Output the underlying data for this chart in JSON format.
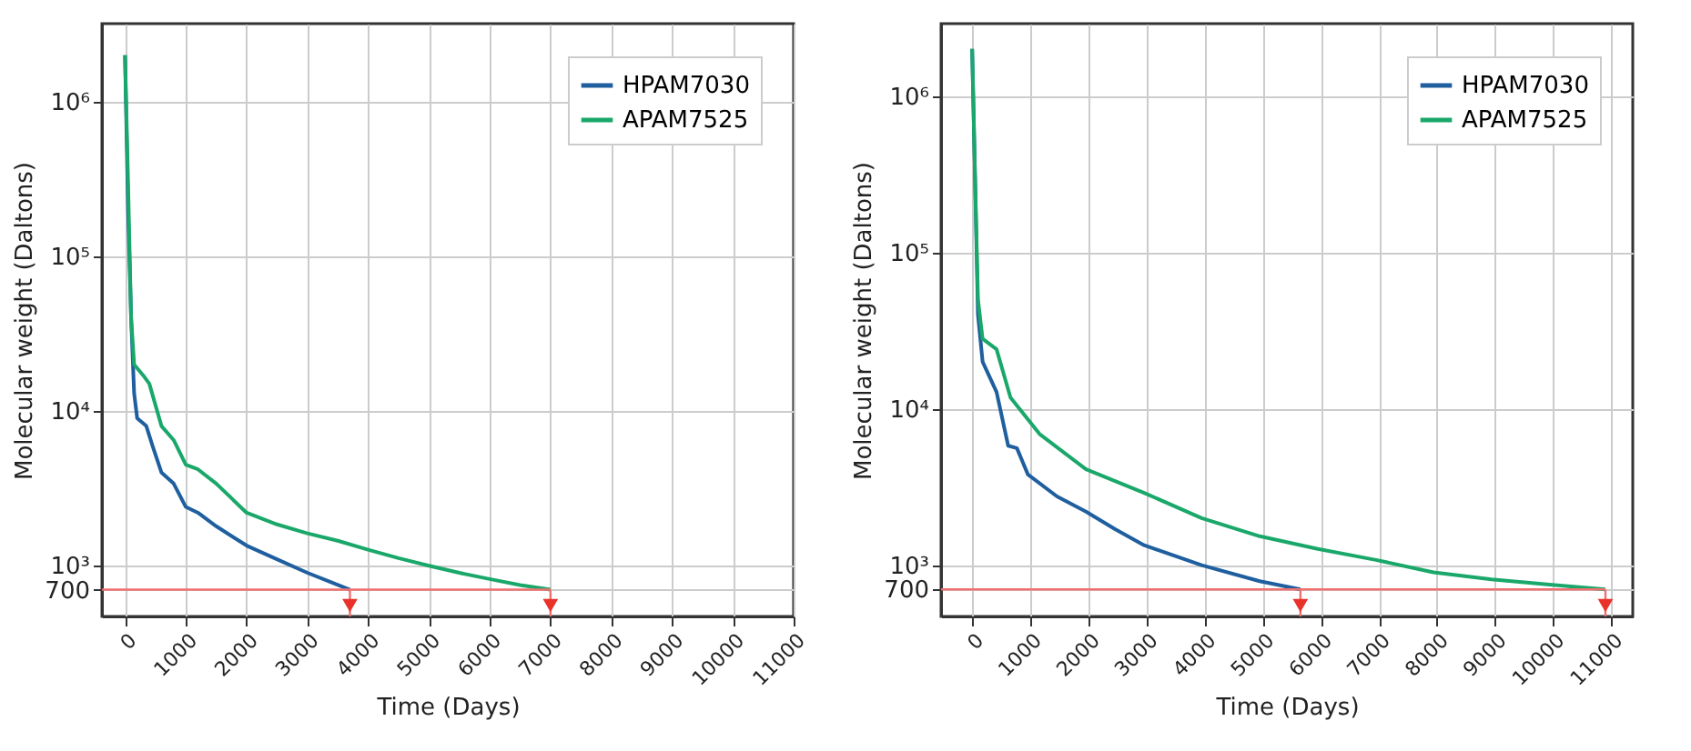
{
  "chart_data": [
    {
      "type": "line",
      "xlabel": "Time (Days)",
      "ylabel": "Molecular weight (Daltons)",
      "log": "y",
      "grid": true,
      "legend": "top right",
      "xlim": [
        -380,
        11000
      ],
      "xticks": [
        0,
        1000,
        2000,
        3000,
        4000,
        5000,
        6000,
        7000,
        8000,
        9000,
        10000,
        11000
      ],
      "ylim": [
        470,
        3200000
      ],
      "yticks": [
        {
          "value": 700,
          "label": "700"
        },
        {
          "value": 1000,
          "label": "10³"
        },
        {
          "value": 10000,
          "label": "10⁴"
        },
        {
          "value": 100000,
          "label": "10⁵"
        },
        {
          "value": 1000000,
          "label": "10⁶"
        }
      ],
      "ref_lines": [
        {
          "axis": "y",
          "value": 700,
          "color": "#f07070"
        }
      ],
      "series": [
        {
          "name": "HPAM7030",
          "color": "#1f5f9f",
          "x": [
            0,
            50,
            100,
            150,
            200,
            350,
            450,
            600,
            800,
            1000,
            1200,
            1500,
            2000,
            2500,
            3000,
            3400,
            3700
          ],
          "values": [
            2000000,
            200000,
            40000,
            13000,
            9000,
            8000,
            6000,
            4000,
            3400,
            2400,
            2200,
            1800,
            1350,
            1100,
            900,
            780,
            700
          ]
        },
        {
          "name": "APAM7525",
          "color": "#1aa86a",
          "x": [
            0,
            50,
            100,
            150,
            300,
            400,
            600,
            800,
            1000,
            1200,
            1500,
            2000,
            2500,
            3000,
            3500,
            4000,
            4500,
            5000,
            5500,
            6000,
            6500,
            7000
          ],
          "values": [
            2000000,
            300000,
            40000,
            20000,
            17000,
            15000,
            8000,
            6500,
            4500,
            4200,
            3400,
            2200,
            1850,
            1620,
            1450,
            1270,
            1120,
            1000,
            900,
            820,
            750,
            700
          ]
        }
      ]
    },
    {
      "type": "line",
      "xlabel": "Time (Days)",
      "ylabel": "Molecular weight (Daltons)",
      "log": "y",
      "grid": true,
      "legend": "top right",
      "xlim": [
        -535,
        11370
      ],
      "xticks": [
        0,
        1000,
        2000,
        3000,
        4000,
        5000,
        6000,
        7000,
        8000,
        9000,
        10000,
        11000
      ],
      "ylim": [
        470,
        2900000
      ],
      "yticks": [
        {
          "value": 700,
          "label": "700"
        },
        {
          "value": 1000,
          "label": "10³"
        },
        {
          "value": 10000,
          "label": "10⁴"
        },
        {
          "value": 100000,
          "label": "10⁵"
        },
        {
          "value": 1000000,
          "label": "10⁶"
        }
      ],
      "ref_lines": [
        {
          "axis": "y",
          "value": 700,
          "color": "#f07070"
        }
      ],
      "series": [
        {
          "name": "HPAM7030",
          "color": "#1f5f9f",
          "x": [
            0,
            50,
            100,
            180,
            420,
            620,
            770,
            960,
            1460,
            1960,
            2460,
            2960,
            3950,
            4950,
            5650
          ],
          "values": [
            2000000,
            300000,
            40000,
            20000,
            12800,
            5800,
            5600,
            3800,
            2750,
            2200,
            1700,
            1340,
            1000,
            790,
            700
          ]
        },
        {
          "name": "APAM7525",
          "color": "#1aa86a",
          "x": [
            0,
            50,
            100,
            180,
            420,
            660,
            1160,
            1960,
            2960,
            3950,
            4950,
            5950,
            6950,
            7940,
            8940,
            9940,
            10900
          ],
          "values": [
            2000000,
            300000,
            50000,
            28000,
            24000,
            11800,
            6900,
            4100,
            2900,
            2000,
            1530,
            1270,
            1080,
            900,
            810,
            750,
            700
          ]
        }
      ]
    }
  ]
}
